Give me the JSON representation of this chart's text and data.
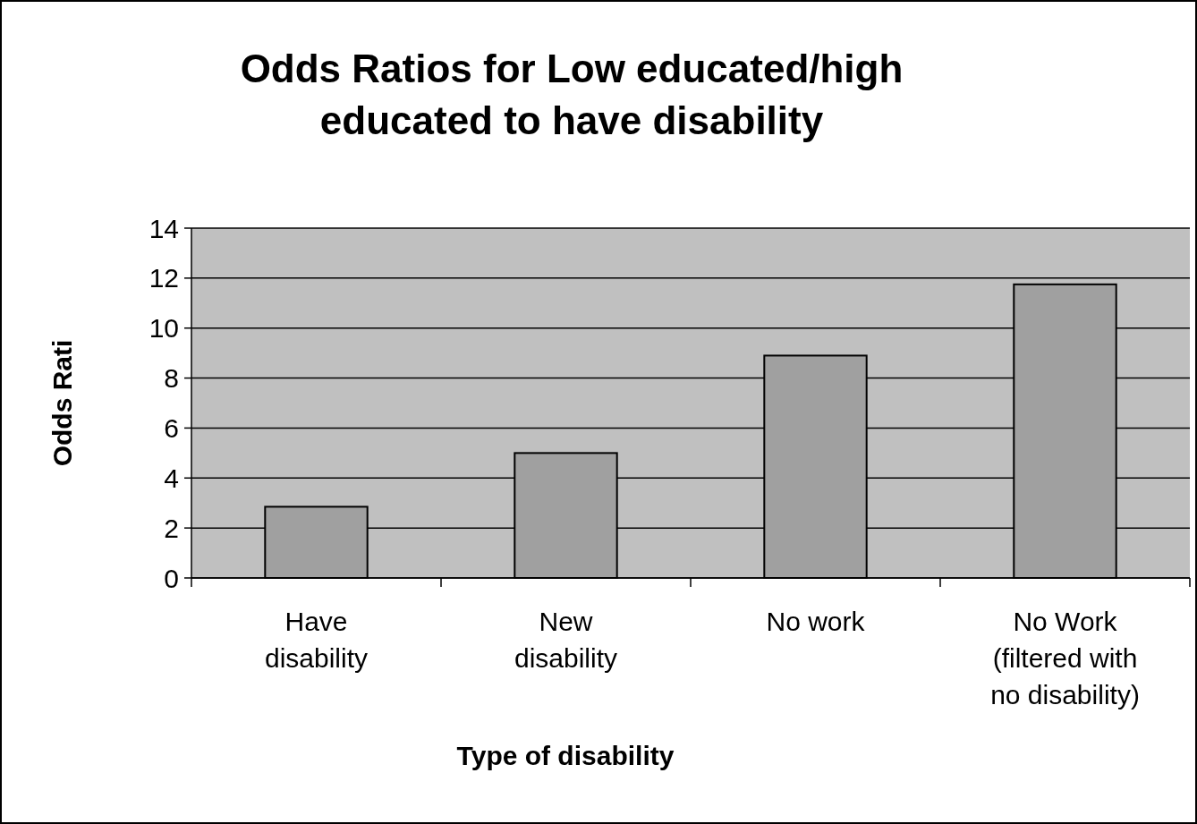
{
  "chart_data": {
    "type": "bar",
    "title": "Odds Ratios for Low educated/high\neducated to have disability",
    "xlabel": "Type of disability",
    "ylabel": "Odds Rati",
    "categories": [
      "Have\ndisability",
      "New\ndisability",
      "No work",
      "No Work\n(filtered with\nno disability)"
    ],
    "values": [
      2.85,
      5.0,
      8.9,
      11.75
    ],
    "color": "#a0a0a0",
    "ylim": [
      0,
      14
    ],
    "yticks": [
      0,
      2,
      4,
      6,
      8,
      10,
      12,
      14
    ],
    "grid": "y"
  }
}
